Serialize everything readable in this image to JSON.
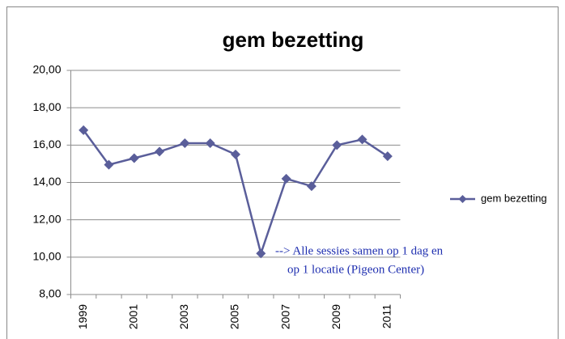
{
  "chart_data": {
    "type": "line",
    "title": "gem bezetting",
    "categories": [
      "1999",
      null,
      "2001",
      null,
      "2003",
      null,
      "2005",
      null,
      "2007",
      null,
      "2009",
      null,
      "2011"
    ],
    "series": [
      {
        "name": "gem bezetting",
        "color": "#5a5e9a",
        "values": [
          16.8,
          14.95,
          15.3,
          15.65,
          16.1,
          16.1,
          15.5,
          10.2,
          14.2,
          13.8,
          16.0,
          16.3,
          15.4
        ]
      }
    ],
    "ylim": [
      8,
      20
    ],
    "yticks": [
      {
        "value": 8,
        "label": "8,00"
      },
      {
        "value": 10,
        "label": "10,00"
      },
      {
        "value": 12,
        "label": "12,00"
      },
      {
        "value": 14,
        "label": "14,00"
      },
      {
        "value": 16,
        "label": "16,00"
      },
      {
        "value": 18,
        "label": "18,00"
      },
      {
        "value": 20,
        "label": "20,00"
      }
    ],
    "grid": true,
    "legend": "right",
    "annotations": [
      "--> Alle sessies samen op 1 dag en",
      "op 1 locatie (Pigeon Center)"
    ]
  }
}
